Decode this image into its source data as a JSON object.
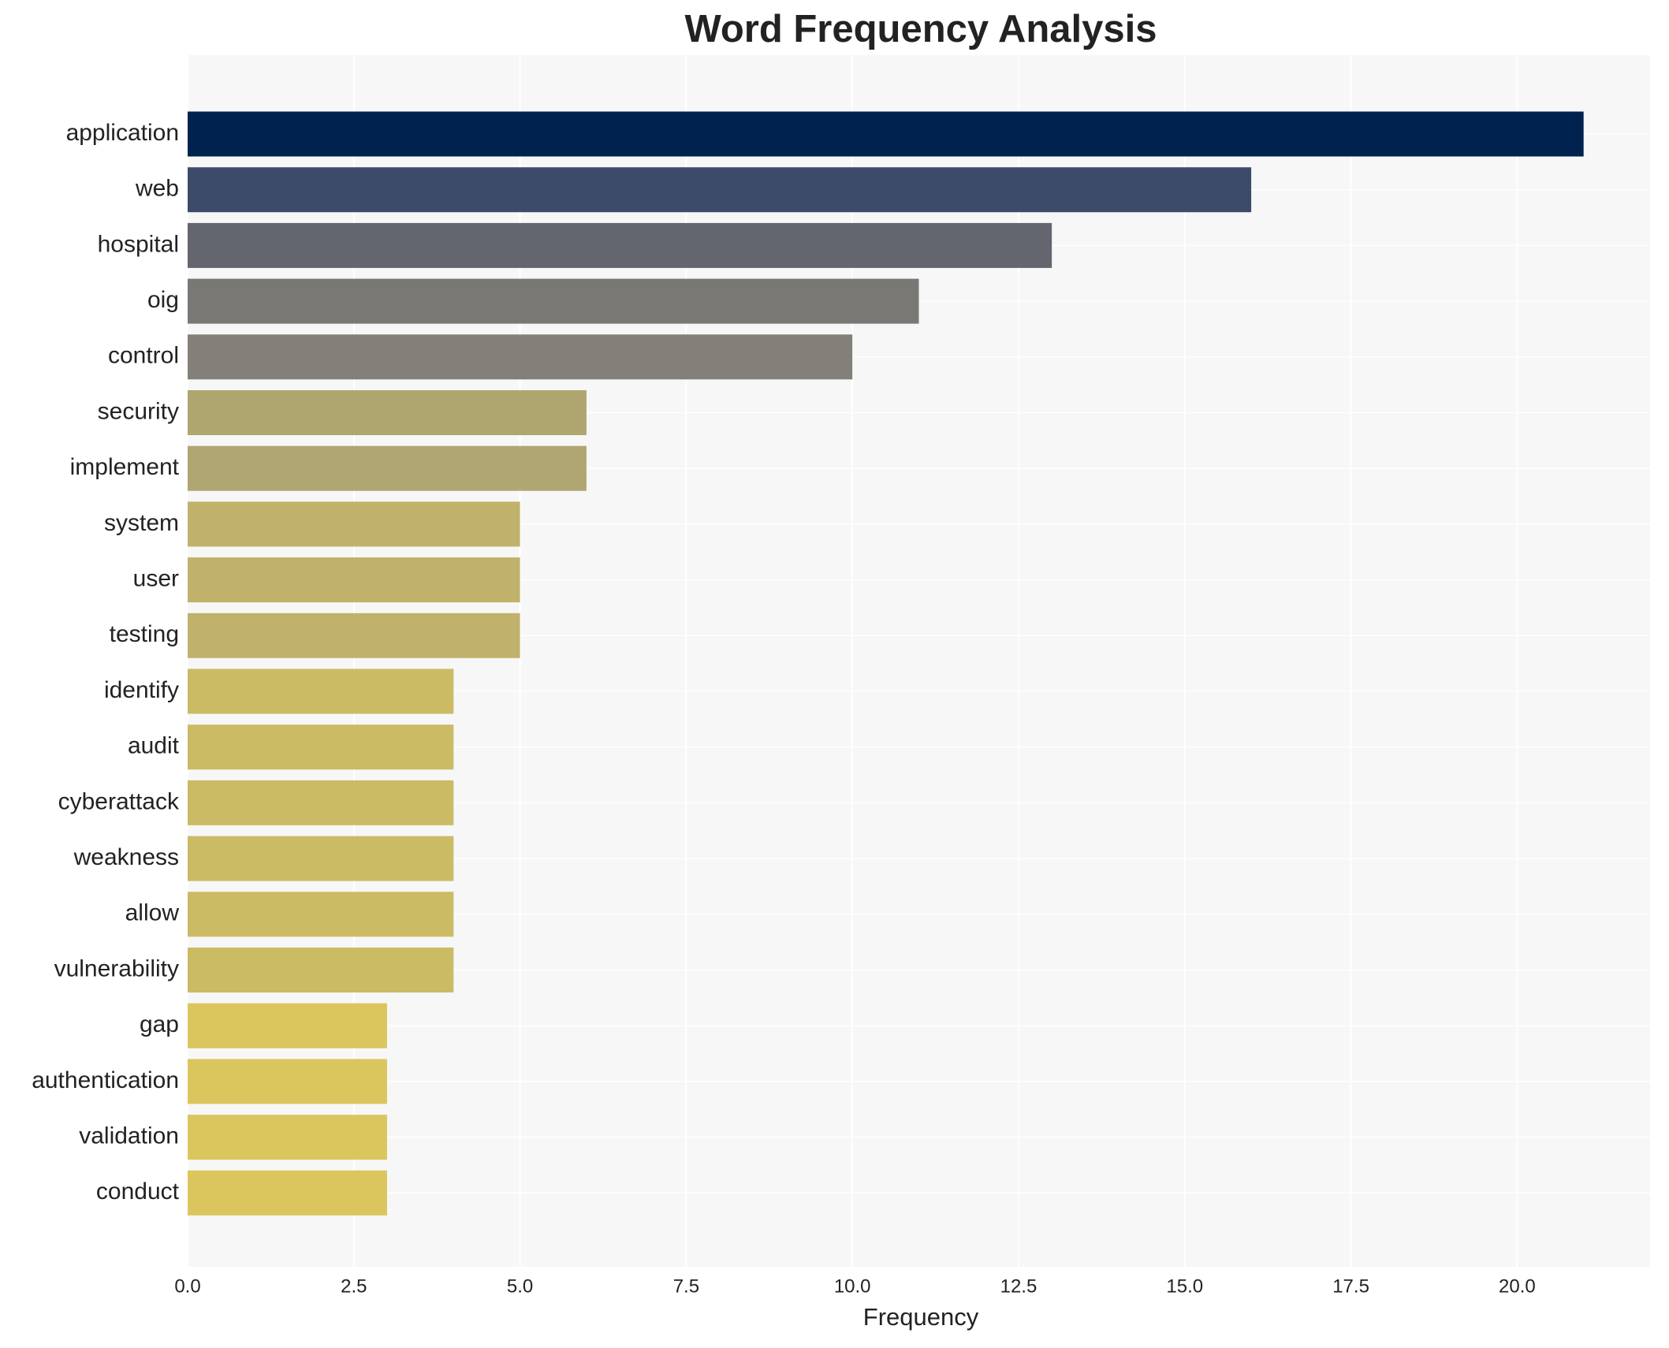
{
  "chart_data": {
    "type": "barh",
    "title": "Word Frequency Analysis",
    "x_label": "Frequency",
    "categories": [
      "application",
      "web",
      "hospital",
      "oig",
      "control",
      "security",
      "implement",
      "system",
      "user",
      "testing",
      "identify",
      "audit",
      "cyberattack",
      "weakness",
      "allow",
      "vulnerability",
      "gap",
      "authentication",
      "validation",
      "conduct"
    ],
    "values": [
      21,
      16,
      13,
      11,
      10,
      6,
      6,
      5,
      5,
      5,
      4,
      4,
      4,
      4,
      4,
      4,
      3,
      3,
      3,
      3
    ],
    "colors": [
      "#00224e",
      "#3d4b6a",
      "#63656f",
      "#797874",
      "#83807a",
      "#afa66f",
      "#afa672",
      "#c1b26b",
      "#c1b26b",
      "#c1b26b",
      "#cbbb65",
      "#cbbb65",
      "#cbbb65",
      "#cbbb65",
      "#cbbb65",
      "#cbbb65",
      "#dac65c",
      "#dac65c",
      "#dac65c",
      "#dac65c"
    ],
    "xlim": [
      0,
      22
    ],
    "xticks": [
      {
        "value": 0,
        "label": "0.0"
      },
      2.5,
      {
        "value": 5,
        "label": "5.0"
      },
      7.5,
      {
        "value": 10,
        "label": "10.0"
      },
      12.5,
      {
        "value": 15,
        "label": "15.0"
      },
      17.5,
      {
        "value": 20,
        "label": "20.0"
      }
    ],
    "grid": true
  }
}
